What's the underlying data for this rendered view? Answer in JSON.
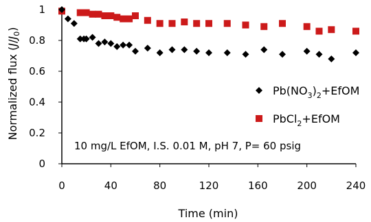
{
  "chart_data": {
    "type": "scatter",
    "xlabel": "Time (min)",
    "ylabel": "Normalized flux (J/J₀)",
    "xlim": [
      0,
      240
    ],
    "ylim": [
      0,
      1
    ],
    "xticks": [
      "0",
      "40",
      "80",
      "120",
      "160",
      "200",
      "240"
    ],
    "yticks": [
      "0",
      "0.2",
      "0.4",
      "0.6",
      "0.8",
      "1"
    ],
    "grid": false,
    "legend_position": "right",
    "annotation": "10 mg/L EfOM, I.S. 0.01 M, pH 7, P= 60 psig",
    "series": [
      {
        "name": "Pb(NO3)2+EfOM",
        "legend_label": {
          "pre": "Pb(NO",
          "sub1": "3",
          "mid": ")",
          "sub2": "2",
          "post": "+EfOM"
        },
        "marker": "diamond",
        "color": "#000000",
        "x": [
          0,
          5,
          10,
          15,
          18,
          20,
          25,
          30,
          35,
          40,
          45,
          50,
          55,
          60,
          70,
          80,
          90,
          100,
          110,
          120,
          135,
          150,
          165,
          180,
          200,
          210,
          220,
          240
        ],
        "y": [
          1.0,
          0.94,
          0.91,
          0.81,
          0.81,
          0.81,
          0.82,
          0.78,
          0.79,
          0.78,
          0.76,
          0.77,
          0.77,
          0.73,
          0.75,
          0.72,
          0.74,
          0.74,
          0.73,
          0.72,
          0.72,
          0.71,
          0.74,
          0.71,
          0.73,
          0.71,
          0.68,
          0.72
        ]
      },
      {
        "name": "PbCl2+EfOM",
        "legend_label": {
          "pre": "PbCl",
          "sub1": "2",
          "mid": "",
          "sub2": "",
          "post": "+EfOM"
        },
        "marker": "square",
        "color": "#cc1a1a",
        "x": [
          0,
          15,
          20,
          25,
          30,
          35,
          40,
          45,
          50,
          55,
          60,
          70,
          80,
          90,
          100,
          110,
          120,
          135,
          150,
          165,
          180,
          200,
          210,
          220,
          240
        ],
        "y": [
          0.99,
          0.98,
          0.98,
          0.97,
          0.97,
          0.96,
          0.96,
          0.95,
          0.94,
          0.94,
          0.96,
          0.93,
          0.91,
          0.91,
          0.92,
          0.91,
          0.91,
          0.91,
          0.9,
          0.89,
          0.91,
          0.89,
          0.86,
          0.87,
          0.86
        ]
      }
    ]
  }
}
